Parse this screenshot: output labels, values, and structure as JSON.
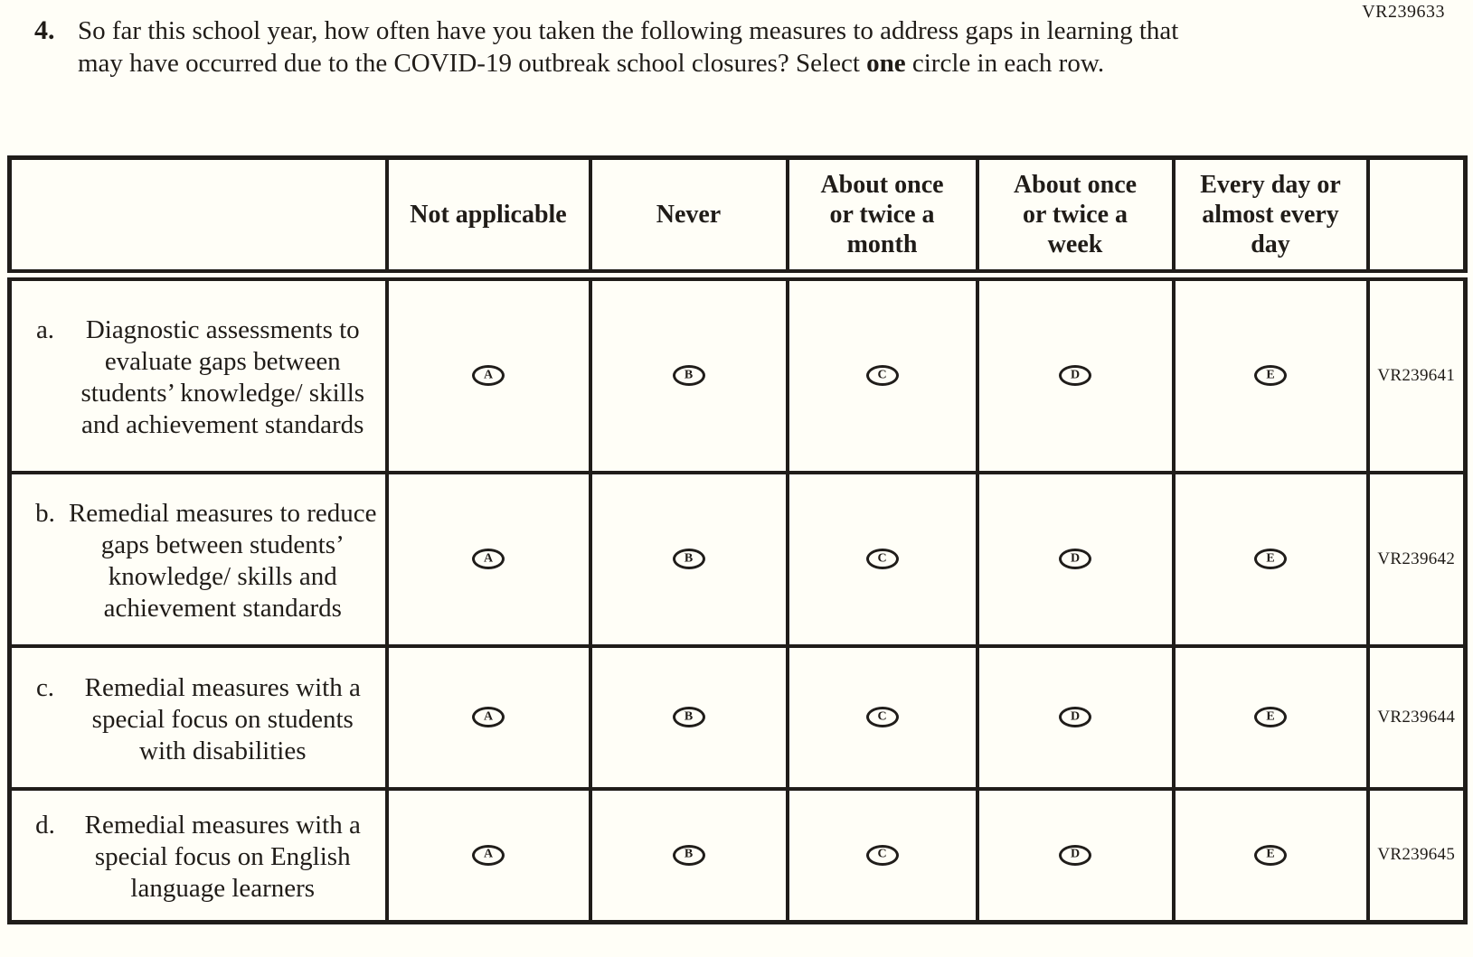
{
  "page": {
    "form_code": "VR239633"
  },
  "question": {
    "number": "4.",
    "text_before_bold": "So far this school year, how often have you taken the following measures to address gaps in learning that may have occurred due to the COVID-19 outbreak school closures? Select ",
    "bold_word": "one",
    "text_after_bold": " circle in each row."
  },
  "table": {
    "column_headers": [
      "Not applicable",
      "Never",
      "About once or twice a month",
      "About once or twice a week",
      "Every day or almost every day"
    ],
    "option_letters": [
      "A",
      "B",
      "C",
      "D",
      "E"
    ],
    "rows": [
      {
        "letter": "a.",
        "label": "Diagnostic assessments to evaluate gaps between students’ knowledge/ skills and achievement standards",
        "code": "VR239641"
      },
      {
        "letter": "b.",
        "label": "Remedial measures to reduce gaps between students’ knowledge/ skills and achievement standards",
        "code": "VR239642"
      },
      {
        "letter": "c.",
        "label": "Remedial measures with a special focus on students with disabilities",
        "code": "VR239644"
      },
      {
        "letter": "d.",
        "label": "Remedial measures with a special focus on English language learners",
        "code": "VR239645"
      }
    ]
  }
}
